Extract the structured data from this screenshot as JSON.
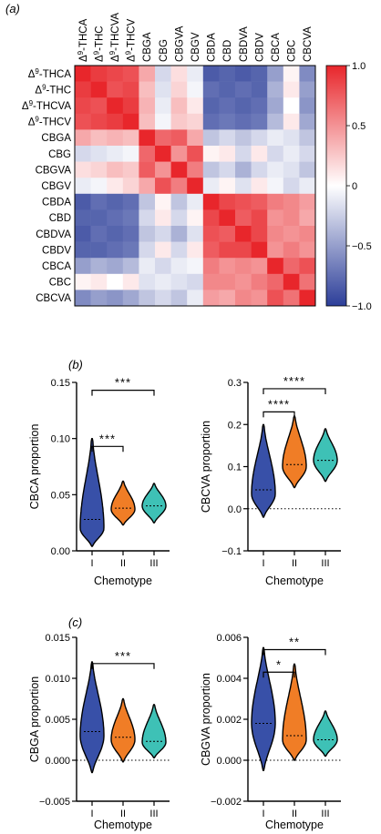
{
  "panel_labels": [
    "(a)",
    "(b)",
    "(c)"
  ],
  "chart_data": [
    {
      "type": "heatmap",
      "panel": "(a)",
      "labels": [
        "Δ⁹-THCA",
        "Δ⁹-THC",
        "Δ⁹-THCVA",
        "Δ⁹-THCV",
        "CBGA",
        "CBG",
        "CBGVA",
        "CBGV",
        "CBDA",
        "CBD",
        "CBDVA",
        "CBDV",
        "CBCA",
        "CBC",
        "CBCVA"
      ],
      "row_labels": [
        {
          "prefix": "Δ",
          "sup": "9",
          "suffix": "-THCA"
        },
        {
          "prefix": "Δ",
          "sup": "9",
          "suffix": "-THC"
        },
        {
          "prefix": "Δ",
          "sup": "9",
          "suffix": "-THCVA"
        },
        {
          "prefix": "Δ",
          "sup": "9",
          "suffix": "-THCV"
        },
        {
          "prefix": "CBGA",
          "sup": "",
          "suffix": ""
        },
        {
          "prefix": "CBG",
          "sup": "",
          "suffix": ""
        },
        {
          "prefix": "CBGVA",
          "sup": "",
          "suffix": ""
        },
        {
          "prefix": "CBGV",
          "sup": "",
          "suffix": ""
        },
        {
          "prefix": "CBDA",
          "sup": "",
          "suffix": ""
        },
        {
          "prefix": "CBD",
          "sup": "",
          "suffix": ""
        },
        {
          "prefix": "CBDVA",
          "sup": "",
          "suffix": ""
        },
        {
          "prefix": "CBDV",
          "sup": "",
          "suffix": ""
        },
        {
          "prefix": "CBCA",
          "sup": "",
          "suffix": ""
        },
        {
          "prefix": "CBC",
          "sup": "",
          "suffix": ""
        },
        {
          "prefix": "CBCVA",
          "sup": "",
          "suffix": ""
        }
      ],
      "values": [
        [
          1.0,
          0.9,
          0.85,
          0.8,
          0.4,
          -0.2,
          0.15,
          -0.1,
          -0.85,
          -0.8,
          -0.85,
          -0.8,
          -0.5,
          0.05,
          -0.6
        ],
        [
          0.9,
          1.0,
          0.8,
          0.85,
          0.3,
          -0.15,
          0.2,
          -0.05,
          -0.75,
          -0.8,
          -0.75,
          -0.8,
          -0.4,
          0.1,
          -0.5
        ],
        [
          0.85,
          0.8,
          1.0,
          0.9,
          0.35,
          -0.1,
          0.3,
          0.1,
          -0.8,
          -0.75,
          -0.8,
          -0.75,
          -0.45,
          0.0,
          -0.55
        ],
        [
          0.8,
          0.85,
          0.9,
          1.0,
          0.3,
          -0.05,
          0.25,
          0.2,
          -0.75,
          -0.7,
          -0.75,
          -0.7,
          -0.35,
          0.1,
          -0.45
        ],
        [
          0.4,
          0.3,
          0.35,
          0.3,
          1.0,
          0.7,
          0.75,
          0.4,
          -0.3,
          -0.2,
          -0.3,
          -0.2,
          -0.1,
          -0.15,
          -0.3
        ],
        [
          -0.2,
          -0.15,
          -0.1,
          -0.05,
          0.7,
          1.0,
          0.5,
          0.8,
          0.05,
          0.1,
          -0.2,
          0.1,
          -0.2,
          -0.1,
          -0.2
        ],
        [
          0.15,
          0.2,
          0.3,
          0.25,
          0.75,
          0.5,
          1.0,
          0.6,
          -0.3,
          -0.2,
          -0.4,
          -0.2,
          -0.1,
          -0.15,
          -0.3
        ],
        [
          -0.1,
          -0.05,
          0.1,
          0.2,
          0.4,
          0.8,
          0.6,
          1.0,
          -0.1,
          0.05,
          -0.15,
          0.1,
          -0.05,
          -0.2,
          -0.1
        ],
        [
          -0.85,
          -0.75,
          -0.8,
          -0.75,
          -0.3,
          0.05,
          -0.3,
          -0.1,
          1.0,
          0.85,
          0.8,
          0.75,
          0.6,
          0.55,
          0.45
        ],
        [
          -0.8,
          -0.8,
          -0.75,
          -0.7,
          -0.2,
          0.1,
          -0.2,
          0.05,
          0.85,
          1.0,
          0.75,
          0.85,
          0.5,
          0.55,
          0.4
        ],
        [
          -0.85,
          -0.75,
          -0.8,
          -0.75,
          -0.3,
          -0.2,
          -0.4,
          -0.15,
          0.8,
          0.75,
          1.0,
          0.85,
          0.55,
          0.5,
          0.55
        ],
        [
          -0.8,
          -0.8,
          -0.75,
          -0.7,
          -0.2,
          0.1,
          -0.2,
          0.1,
          0.75,
          0.85,
          0.85,
          1.0,
          0.5,
          0.6,
          0.5
        ],
        [
          -0.5,
          -0.4,
          -0.45,
          -0.35,
          -0.1,
          -0.2,
          -0.1,
          -0.05,
          0.6,
          0.5,
          0.55,
          0.5,
          1.0,
          0.7,
          0.8
        ],
        [
          0.05,
          0.1,
          0.0,
          0.1,
          -0.15,
          -0.1,
          -0.15,
          -0.2,
          0.55,
          0.55,
          0.5,
          0.6,
          0.7,
          1.0,
          0.65
        ],
        [
          -0.6,
          -0.5,
          -0.55,
          -0.45,
          -0.3,
          -0.2,
          -0.3,
          -0.1,
          0.45,
          0.4,
          0.55,
          0.5,
          0.8,
          0.65,
          1.0
        ]
      ],
      "colorbar": {
        "range": [
          -1.0,
          1.0
        ],
        "ticks": [
          "1.0",
          "0.5",
          "0",
          "−0.5",
          "−1.0"
        ],
        "tick_values": [
          1.0,
          0.5,
          0.0,
          -0.5,
          -1.0
        ]
      },
      "colors": {
        "low": "#2c3e99",
        "mid": "#ffffff",
        "high": "#e8262b"
      }
    },
    {
      "type": "violin",
      "panel": "(b)",
      "xlabel": "Chemotype",
      "ylabel": "CBCA proportion",
      "categories": [
        "I",
        "II",
        "III"
      ],
      "ylim": [
        0.0,
        0.15
      ],
      "yticks": [
        {
          "v": 0.0,
          "t": "0.00"
        },
        {
          "v": 0.05,
          "t": "0.05"
        },
        {
          "v": 0.1,
          "t": "0.10"
        },
        {
          "v": 0.15,
          "t": "0.15"
        }
      ],
      "zero_line": false,
      "series": [
        {
          "name": "I",
          "min": 0.004,
          "max": 0.1,
          "median": 0.028,
          "mode": 0.02
        },
        {
          "name": "II",
          "min": 0.023,
          "max": 0.062,
          "median": 0.038,
          "mode": 0.037
        },
        {
          "name": "III",
          "min": 0.025,
          "max": 0.06,
          "median": 0.04,
          "mode": 0.04
        }
      ],
      "brackets": [
        {
          "from": "I",
          "to": "II",
          "y": 0.093,
          "label": "***"
        },
        {
          "from": "I",
          "to": "III",
          "y": 0.143,
          "label": "***"
        }
      ]
    },
    {
      "type": "violin",
      "panel": "(b)",
      "xlabel": "Chemotype",
      "ylabel": "CBCVA proportion",
      "categories": [
        "I",
        "II",
        "III"
      ],
      "ylim": [
        -0.1,
        0.3
      ],
      "yticks": [
        {
          "v": -0.1,
          "t": "−0.1"
        },
        {
          "v": 0.0,
          "t": "0.0"
        },
        {
          "v": 0.1,
          "t": "0.1"
        },
        {
          "v": 0.2,
          "t": "0.2"
        },
        {
          "v": 0.3,
          "t": "0.3"
        }
      ],
      "zero_line": true,
      "series": [
        {
          "name": "I",
          "min": -0.02,
          "max": 0.2,
          "median": 0.045,
          "mode": 0.035
        },
        {
          "name": "II",
          "min": 0.05,
          "max": 0.22,
          "median": 0.105,
          "mode": 0.1
        },
        {
          "name": "III",
          "min": 0.065,
          "max": 0.19,
          "median": 0.115,
          "mode": 0.115
        }
      ],
      "brackets": [
        {
          "from": "I",
          "to": "II",
          "y": 0.23,
          "label": "****"
        },
        {
          "from": "I",
          "to": "III",
          "y": 0.285,
          "label": "****"
        }
      ]
    },
    {
      "type": "violin",
      "panel": "(c)",
      "xlabel": "Chemotype",
      "ylabel": "CBGA proportion",
      "categories": [
        "I",
        "II",
        "III"
      ],
      "ylim": [
        -0.005,
        0.015
      ],
      "yticks": [
        {
          "v": -0.005,
          "t": "−0.005"
        },
        {
          "v": 0.0,
          "t": "0.000"
        },
        {
          "v": 0.005,
          "t": "0.005"
        },
        {
          "v": 0.01,
          "t": "0.010"
        },
        {
          "v": 0.015,
          "t": "0.015"
        }
      ],
      "zero_line": true,
      "series": [
        {
          "name": "I",
          "min": -0.0015,
          "max": 0.012,
          "median": 0.0035,
          "mode": 0.003
        },
        {
          "name": "II",
          "min": -0.0002,
          "max": 0.0075,
          "median": 0.0028,
          "mode": 0.0025
        },
        {
          "name": "III",
          "min": 0.0003,
          "max": 0.0068,
          "median": 0.0023,
          "mode": 0.0022
        }
      ],
      "brackets": [
        {
          "from": "I",
          "to": "III",
          "y": 0.0118,
          "label": "***"
        }
      ]
    },
    {
      "type": "violin",
      "panel": "(c)",
      "xlabel": "Chemotype",
      "ylabel": "CBGVA proportion",
      "categories": [
        "I",
        "II",
        "III"
      ],
      "ylim": [
        -0.002,
        0.006
      ],
      "yticks": [
        {
          "v": -0.002,
          "t": "−0.002"
        },
        {
          "v": 0.0,
          "t": "0.000"
        },
        {
          "v": 0.002,
          "t": "0.002"
        },
        {
          "v": 0.004,
          "t": "0.004"
        },
        {
          "v": 0.006,
          "t": "0.006"
        }
      ],
      "zero_line": true,
      "series": [
        {
          "name": "I",
          "min": -0.0005,
          "max": 0.0055,
          "median": 0.0018,
          "mode": 0.0018
        },
        {
          "name": "II",
          "min": 0.0,
          "max": 0.0047,
          "median": 0.0012,
          "mode": 0.001
        },
        {
          "name": "III",
          "min": 0.0002,
          "max": 0.0024,
          "median": 0.001,
          "mode": 0.001
        }
      ],
      "brackets": [
        {
          "from": "I",
          "to": "II",
          "y": 0.0043,
          "label": "*"
        },
        {
          "from": "I",
          "to": "III",
          "y": 0.0054,
          "label": "**"
        }
      ]
    }
  ],
  "violin_colors": {
    "I": "#3850a8",
    "II": "#f07d26",
    "III": "#3ec1b6"
  }
}
